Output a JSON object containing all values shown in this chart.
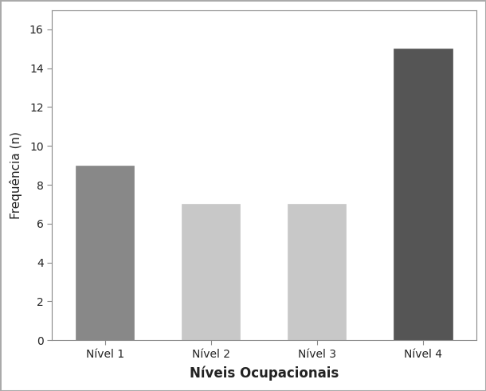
{
  "categories": [
    "Nível 1",
    "Nível 2",
    "Nível 3",
    "Nível 4"
  ],
  "values": [
    9,
    7,
    7,
    15
  ],
  "bar_colors": [
    "#888888",
    "#c8c8c8",
    "#c8c8c8",
    "#555555"
  ],
  "bar_edgecolors": [
    "#888888",
    "#c8c8c8",
    "#c8c8c8",
    "#555555"
  ],
  "xlabel": "Níveis Ocupacionais",
  "ylabel": "Frequência (n)",
  "ylim": [
    0,
    17
  ],
  "yticks": [
    0,
    2,
    4,
    6,
    8,
    10,
    12,
    14,
    16
  ],
  "xlabel_fontsize": 12,
  "ylabel_fontsize": 11,
  "tick_fontsize": 10,
  "xlabel_fontweight": "bold",
  "background_color": "#ffffff",
  "figure_border_color": "#aaaaaa",
  "bar_width": 0.55,
  "spine_color": "#888888"
}
